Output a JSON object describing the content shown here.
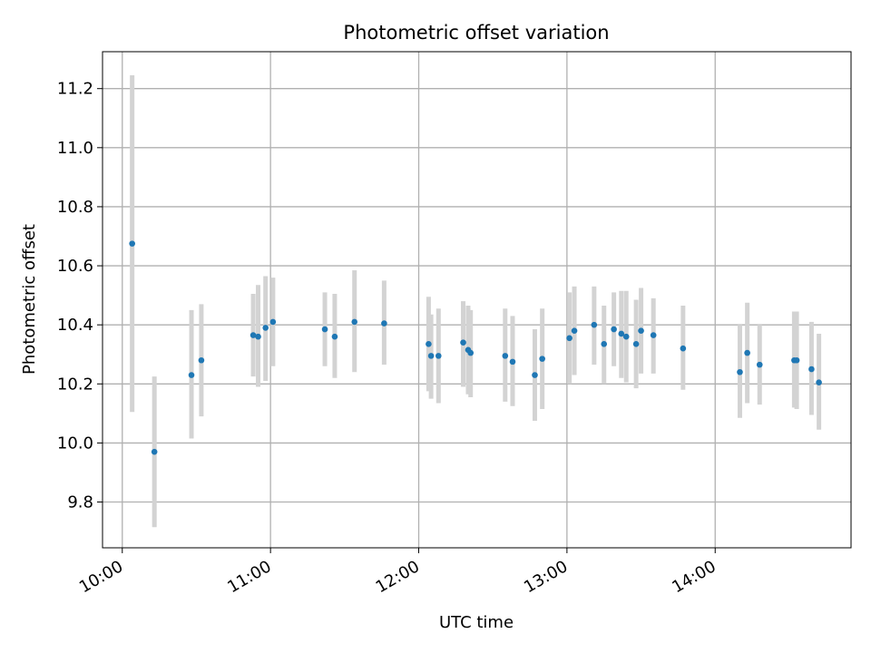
{
  "chart_data": {
    "type": "scatter",
    "title": "Photometric offset variation",
    "xlabel": "UTC time",
    "ylabel": "Photometric offset",
    "x_ticks": [
      "10:00",
      "11:00",
      "12:00",
      "13:00",
      "14:00"
    ],
    "y_ticks": [
      "9.8",
      "10.0",
      "10.2",
      "10.4",
      "10.6",
      "10.8",
      "11.0",
      "11.2"
    ],
    "xlim": [
      "09:52",
      "14:55"
    ],
    "ylim": [
      9.645,
      11.325
    ],
    "grid": true,
    "colors": {
      "point": "#1f77b4",
      "errorbar": "#d3d3d3",
      "grid": "#b0b0b0"
    },
    "points": [
      {
        "x": "10:04",
        "y": 10.675,
        "low": 10.105,
        "high": 11.245
      },
      {
        "x": "10:13",
        "y": 9.97,
        "low": 9.715,
        "high": 10.225
      },
      {
        "x": "10:28",
        "y": 10.23,
        "low": 10.015,
        "high": 10.45
      },
      {
        "x": "10:32",
        "y": 10.28,
        "low": 10.09,
        "high": 10.47
      },
      {
        "x": "10:53",
        "y": 10.365,
        "low": 10.225,
        "high": 10.505
      },
      {
        "x": "10:55",
        "y": 10.36,
        "low": 10.19,
        "high": 10.535
      },
      {
        "x": "10:58",
        "y": 10.39,
        "low": 10.21,
        "high": 10.565
      },
      {
        "x": "11:01",
        "y": 10.41,
        "low": 10.26,
        "high": 10.56
      },
      {
        "x": "11:22",
        "y": 10.385,
        "low": 10.26,
        "high": 10.51
      },
      {
        "x": "11:26",
        "y": 10.36,
        "low": 10.22,
        "high": 10.505
      },
      {
        "x": "11:34",
        "y": 10.41,
        "low": 10.24,
        "high": 10.585
      },
      {
        "x": "11:46",
        "y": 10.405,
        "low": 10.265,
        "high": 10.55
      },
      {
        "x": "12:04",
        "y": 10.335,
        "low": 10.175,
        "high": 10.495
      },
      {
        "x": "12:05",
        "y": 10.295,
        "low": 10.15,
        "high": 10.435
      },
      {
        "x": "12:08",
        "y": 10.295,
        "low": 10.135,
        "high": 10.455
      },
      {
        "x": "12:18",
        "y": 10.34,
        "low": 10.19,
        "high": 10.48
      },
      {
        "x": "12:20",
        "y": 10.315,
        "low": 10.165,
        "high": 10.465
      },
      {
        "x": "12:21",
        "y": 10.305,
        "low": 10.155,
        "high": 10.45
      },
      {
        "x": "12:35",
        "y": 10.295,
        "low": 10.14,
        "high": 10.455
      },
      {
        "x": "12:38",
        "y": 10.275,
        "low": 10.125,
        "high": 10.43
      },
      {
        "x": "12:47",
        "y": 10.23,
        "low": 10.075,
        "high": 10.385
      },
      {
        "x": "12:50",
        "y": 10.285,
        "low": 10.115,
        "high": 10.455
      },
      {
        "x": "13:01",
        "y": 10.355,
        "low": 10.2,
        "high": 10.51
      },
      {
        "x": "13:03",
        "y": 10.38,
        "low": 10.23,
        "high": 10.53
      },
      {
        "x": "13:11",
        "y": 10.4,
        "low": 10.265,
        "high": 10.53
      },
      {
        "x": "13:15",
        "y": 10.335,
        "low": 10.2,
        "high": 10.465
      },
      {
        "x": "13:19",
        "y": 10.385,
        "low": 10.26,
        "high": 10.51
      },
      {
        "x": "13:22",
        "y": 10.37,
        "low": 10.22,
        "high": 10.515
      },
      {
        "x": "13:24",
        "y": 10.36,
        "low": 10.205,
        "high": 10.515
      },
      {
        "x": "13:28",
        "y": 10.335,
        "low": 10.185,
        "high": 10.485
      },
      {
        "x": "13:30",
        "y": 10.38,
        "low": 10.235,
        "high": 10.525
      },
      {
        "x": "13:35",
        "y": 10.365,
        "low": 10.235,
        "high": 10.49
      },
      {
        "x": "13:47",
        "y": 10.32,
        "low": 10.18,
        "high": 10.465
      },
      {
        "x": "14:10",
        "y": 10.24,
        "low": 10.085,
        "high": 10.4
      },
      {
        "x": "14:13",
        "y": 10.305,
        "low": 10.135,
        "high": 10.475
      },
      {
        "x": "14:18",
        "y": 10.265,
        "low": 10.13,
        "high": 10.4
      },
      {
        "x": "14:32",
        "y": 10.28,
        "low": 10.12,
        "high": 10.445
      },
      {
        "x": "14:33",
        "y": 10.28,
        "low": 10.115,
        "high": 10.445
      },
      {
        "x": "14:39",
        "y": 10.25,
        "low": 10.095,
        "high": 10.41
      },
      {
        "x": "14:42",
        "y": 10.205,
        "low": 10.045,
        "high": 10.37
      }
    ]
  }
}
